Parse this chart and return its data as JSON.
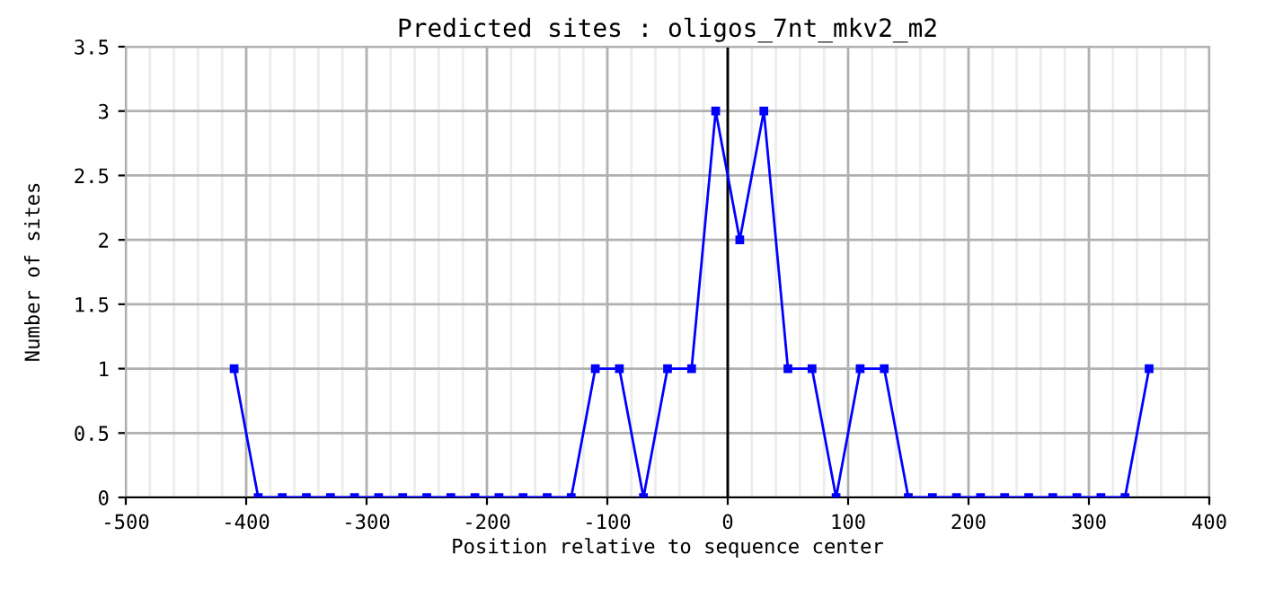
{
  "chart_data": {
    "type": "line",
    "title": "Predicted sites : oligos_7nt_mkv2_m2",
    "xlabel": "Position relative to sequence center",
    "ylabel": "Number of sites",
    "x": [
      -410,
      -390,
      -370,
      -350,
      -330,
      -310,
      -290,
      -270,
      -250,
      -230,
      -210,
      -190,
      -170,
      -150,
      -130,
      -110,
      -90,
      -70,
      -50,
      -30,
      -10,
      10,
      30,
      50,
      70,
      90,
      110,
      130,
      150,
      170,
      190,
      210,
      230,
      250,
      270,
      290,
      310,
      330,
      350
    ],
    "series": [
      {
        "color": "#0000ff",
        "values": [
          1,
          0,
          0,
          0,
          0,
          0,
          0,
          0,
          0,
          0,
          0,
          0,
          0,
          0,
          0,
          1,
          1,
          0,
          1,
          1,
          3,
          2,
          3,
          1,
          1,
          0,
          1,
          1,
          0,
          0,
          0,
          0,
          0,
          0,
          0,
          0,
          0,
          0,
          1
        ]
      }
    ],
    "xlim": [
      -500,
      400
    ],
    "xticks": [
      -500,
      -400,
      -300,
      -200,
      -100,
      0,
      100,
      200,
      300,
      400
    ],
    "ylim": [
      0,
      3.5
    ],
    "yticks": [
      0,
      0.5,
      1,
      1.5,
      2,
      2.5,
      3,
      3.5
    ],
    "ref_lines": [
      {
        "axis": "x",
        "value": 0,
        "color": "#000000"
      }
    ],
    "grid": true,
    "marker": "square",
    "line_style": "solid"
  }
}
